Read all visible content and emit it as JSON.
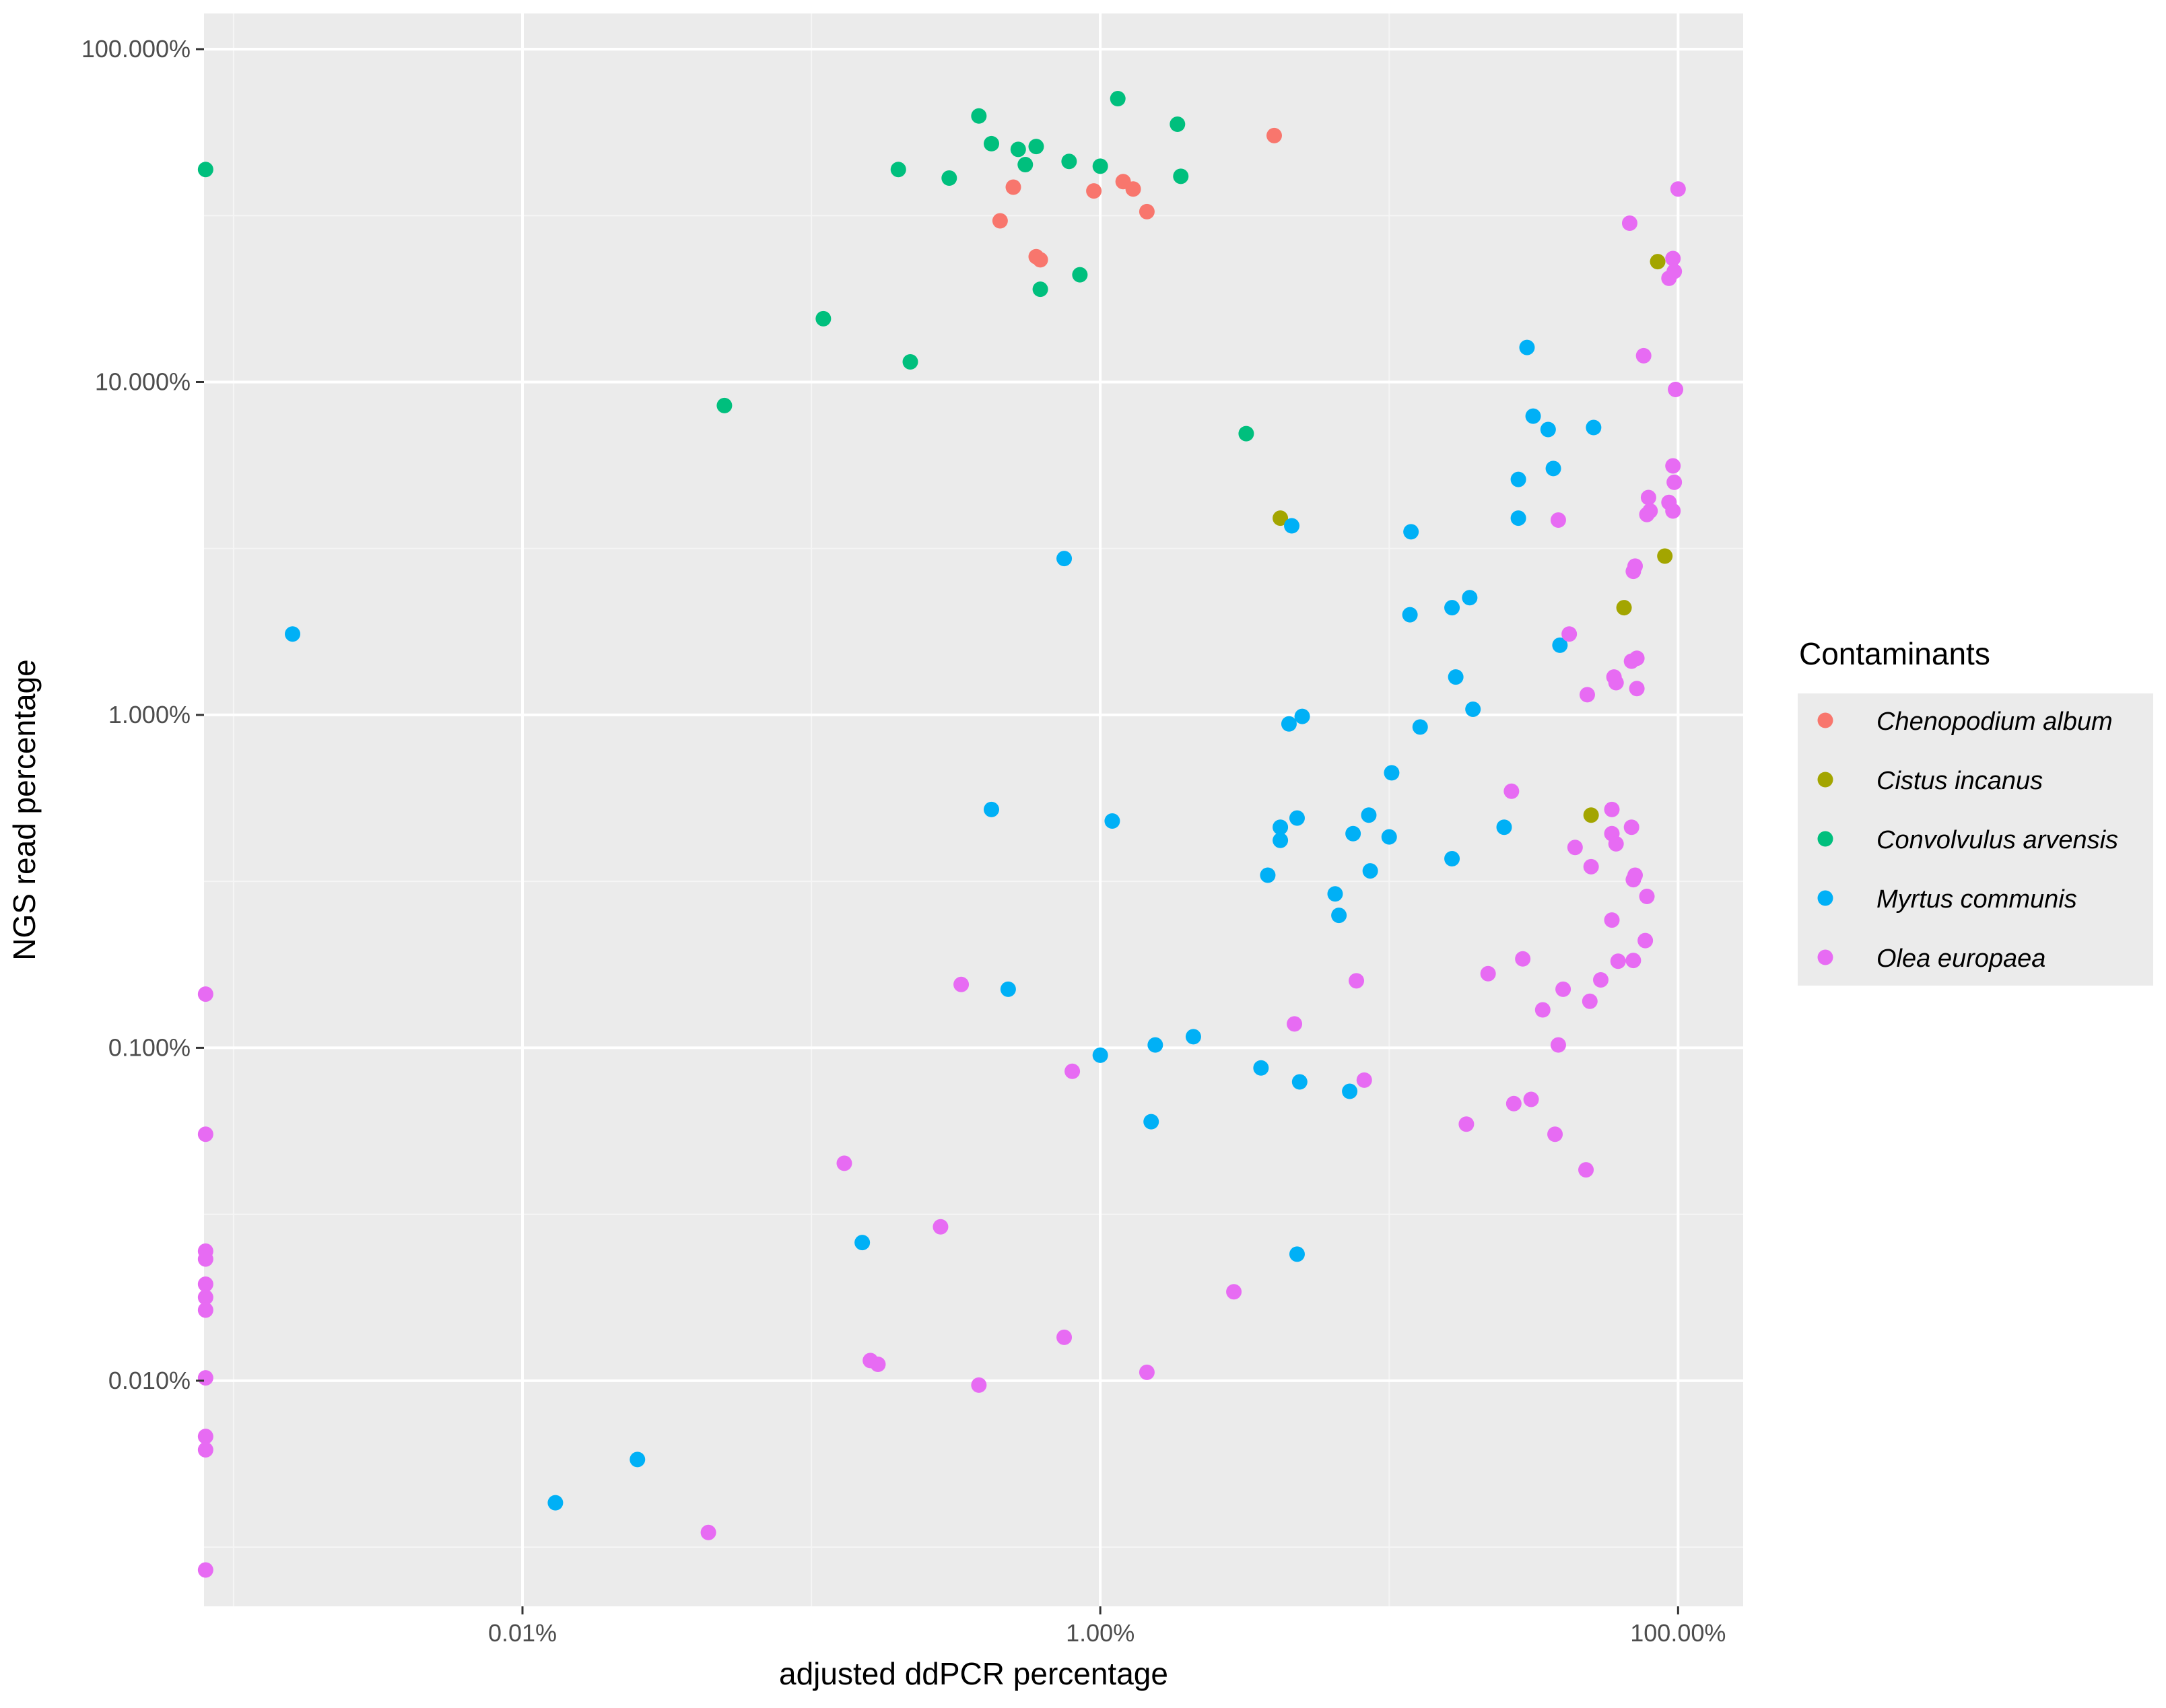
{
  "colors": {
    "panel": "#EBEBEB",
    "grid_major": "#FFFFFF",
    "grid_minor": "#F5F5F5",
    "Chenopodium album": "#F8766D",
    "Cistus incanus": "#A3A500",
    "Convolvulus arvensis": "#00BF7D",
    "Myrtus communis": "#00B0F6",
    "Olea europaea": "#E76BF3"
  },
  "chart_data": {
    "type": "scatter",
    "xlabel": "adjusted ddPCR percentage",
    "ylabel": "NGS read percentage",
    "xscale": "log10",
    "yscale": "log10",
    "xlim": [
      0.00079,
      168
    ],
    "ylim": [
      0.0021,
      128
    ],
    "x_ticks": [
      {
        "value": 0.01,
        "label": "0.01%"
      },
      {
        "value": 1,
        "label": "1.00%"
      },
      {
        "value": 100,
        "label": "100.00%"
      }
    ],
    "y_ticks": [
      {
        "value": 0.01,
        "label": "0.010%"
      },
      {
        "value": 0.1,
        "label": "0.100%"
      },
      {
        "value": 1,
        "label": "1.000%"
      },
      {
        "value": 10,
        "label": "10.000%"
      },
      {
        "value": 100,
        "label": "100.000%"
      }
    ],
    "legend_title": "Contaminants",
    "legend_position": "right",
    "series": [
      {
        "name": "Chenopodium album",
        "points": [
          [
            0.45,
            30.5
          ],
          [
            0.5,
            38.5
          ],
          [
            0.6,
            23.8
          ],
          [
            0.62,
            23.3
          ],
          [
            0.95,
            37.5
          ],
          [
            1.2,
            40
          ],
          [
            1.3,
            38
          ],
          [
            1.45,
            32.5
          ],
          [
            4,
            55
          ]
        ]
      },
      {
        "name": "Cistus incanus",
        "points": [
          [
            4.2,
            3.9
          ],
          [
            50,
            0.5
          ],
          [
            65,
            2.1
          ],
          [
            85,
            23
          ],
          [
            90,
            3
          ]
        ]
      },
      {
        "name": "Convolvulus arvensis",
        "points": [
          [
            0.0008,
            43.5
          ],
          [
            0.05,
            8.5
          ],
          [
            0.11,
            15.5
          ],
          [
            0.2,
            43.5
          ],
          [
            0.22,
            11.5
          ],
          [
            0.3,
            41
          ],
          [
            0.38,
            63
          ],
          [
            0.42,
            52
          ],
          [
            0.52,
            50
          ],
          [
            0.55,
            45
          ],
          [
            0.6,
            51
          ],
          [
            0.62,
            19
          ],
          [
            0.85,
            21
          ],
          [
            0.78,
            46
          ],
          [
            1,
            44.5
          ],
          [
            1.15,
            71
          ],
          [
            1.85,
            59.5
          ],
          [
            1.9,
            41.5
          ],
          [
            3.2,
            7
          ]
        ]
      },
      {
        "name": "Myrtus communis",
        "points": [
          [
            0.0016,
            1.75
          ],
          [
            0.013,
            0.0043
          ],
          [
            0.025,
            0.0058
          ],
          [
            0.15,
            0.026
          ],
          [
            0.42,
            0.52
          ],
          [
            0.48,
            0.15
          ],
          [
            0.75,
            2.95
          ],
          [
            1,
            0.095
          ],
          [
            1.1,
            0.48
          ],
          [
            1.5,
            0.06
          ],
          [
            1.55,
            0.102
          ],
          [
            2.1,
            0.108
          ],
          [
            3.6,
            0.087
          ],
          [
            3.8,
            0.33
          ],
          [
            4.2,
            0.46
          ],
          [
            4.2,
            0.42
          ],
          [
            4.5,
            0.94
          ],
          [
            4.6,
            3.7
          ],
          [
            4.8,
            0.024
          ],
          [
            4.8,
            0.49
          ],
          [
            4.9,
            0.079
          ],
          [
            5,
            0.99
          ],
          [
            6.5,
            0.29
          ],
          [
            6.7,
            0.25
          ],
          [
            7.3,
            0.074
          ],
          [
            7.5,
            0.44
          ],
          [
            8.5,
            0.5
          ],
          [
            8.6,
            0.34
          ],
          [
            10,
            0.43
          ],
          [
            10.2,
            0.67
          ],
          [
            11.8,
            2
          ],
          [
            11.9,
            3.55
          ],
          [
            12.8,
            0.92
          ],
          [
            16.5,
            2.1
          ],
          [
            16.5,
            0.37
          ],
          [
            17,
            1.3
          ],
          [
            19,
            2.25
          ],
          [
            19.5,
            1.04
          ],
          [
            25,
            0.46
          ],
          [
            28,
            5.1
          ],
          [
            28,
            3.9
          ],
          [
            30,
            12.7
          ],
          [
            31.5,
            7.9
          ],
          [
            35.5,
            7.2
          ],
          [
            37,
            5.5
          ],
          [
            39,
            1.62
          ],
          [
            51,
            7.3
          ]
        ]
      },
      {
        "name": "Olea europaea",
        "points": [
          [
            0.0008,
            0.145
          ],
          [
            0.0008,
            0.055
          ],
          [
            0.0008,
            0.0245
          ],
          [
            0.0008,
            0.0232
          ],
          [
            0.0008,
            0.0195
          ],
          [
            0.0008,
            0.0178
          ],
          [
            0.0008,
            0.0163
          ],
          [
            0.0008,
            0.0102
          ],
          [
            0.0008,
            0.0068
          ],
          [
            0.0008,
            0.0062
          ],
          [
            0.0008,
            0.0027
          ],
          [
            0.044,
            0.0035
          ],
          [
            0.13,
            0.045
          ],
          [
            0.16,
            0.0115
          ],
          [
            0.17,
            0.0112
          ],
          [
            0.28,
            0.029
          ],
          [
            0.33,
            0.155
          ],
          [
            0.38,
            0.0097
          ],
          [
            0.75,
            0.0135
          ],
          [
            0.8,
            0.085
          ],
          [
            1.45,
            0.0106
          ],
          [
            2.9,
            0.0185
          ],
          [
            4.7,
            0.118
          ],
          [
            7.7,
            0.159
          ],
          [
            8.2,
            0.08
          ],
          [
            18.5,
            0.059
          ],
          [
            22,
            0.167
          ],
          [
            26.5,
            0.59
          ],
          [
            27,
            0.068
          ],
          [
            29,
            0.185
          ],
          [
            31,
            0.07
          ],
          [
            34,
            0.13
          ],
          [
            37.5,
            0.055
          ],
          [
            38.5,
            0.102
          ],
          [
            38.5,
            3.85
          ],
          [
            40,
            0.15
          ],
          [
            42,
            1.75
          ],
          [
            44,
            0.4
          ],
          [
            48,
            0.043
          ],
          [
            48.5,
            1.15
          ],
          [
            49.5,
            0.138
          ],
          [
            50,
            0.35
          ],
          [
            54,
            0.16
          ],
          [
            59,
            0.52
          ],
          [
            59,
            0.44
          ],
          [
            59,
            0.242
          ],
          [
            60,
            1.3
          ],
          [
            61,
            0.41
          ],
          [
            61,
            1.25
          ],
          [
            62,
            0.182
          ],
          [
            68,
            30
          ],
          [
            69,
            0.46
          ],
          [
            69,
            1.45
          ],
          [
            70,
            0.183
          ],
          [
            70,
            0.32
          ],
          [
            70,
            2.7
          ],
          [
            71,
            2.8
          ],
          [
            71,
            0.33
          ],
          [
            72,
            1.48
          ],
          [
            72,
            1.2
          ],
          [
            76,
            12
          ],
          [
            77,
            0.21
          ],
          [
            78,
            4
          ],
          [
            78,
            0.285
          ],
          [
            79,
            4.5
          ],
          [
            80,
            4.1
          ],
          [
            93,
            20.5
          ],
          [
            93,
            4.35
          ],
          [
            96,
            23.5
          ],
          [
            96,
            5.6
          ],
          [
            96,
            4.1
          ],
          [
            97,
            21.5
          ],
          [
            97,
            5
          ],
          [
            98,
            9.5
          ],
          [
            100,
            38
          ]
        ]
      }
    ]
  }
}
